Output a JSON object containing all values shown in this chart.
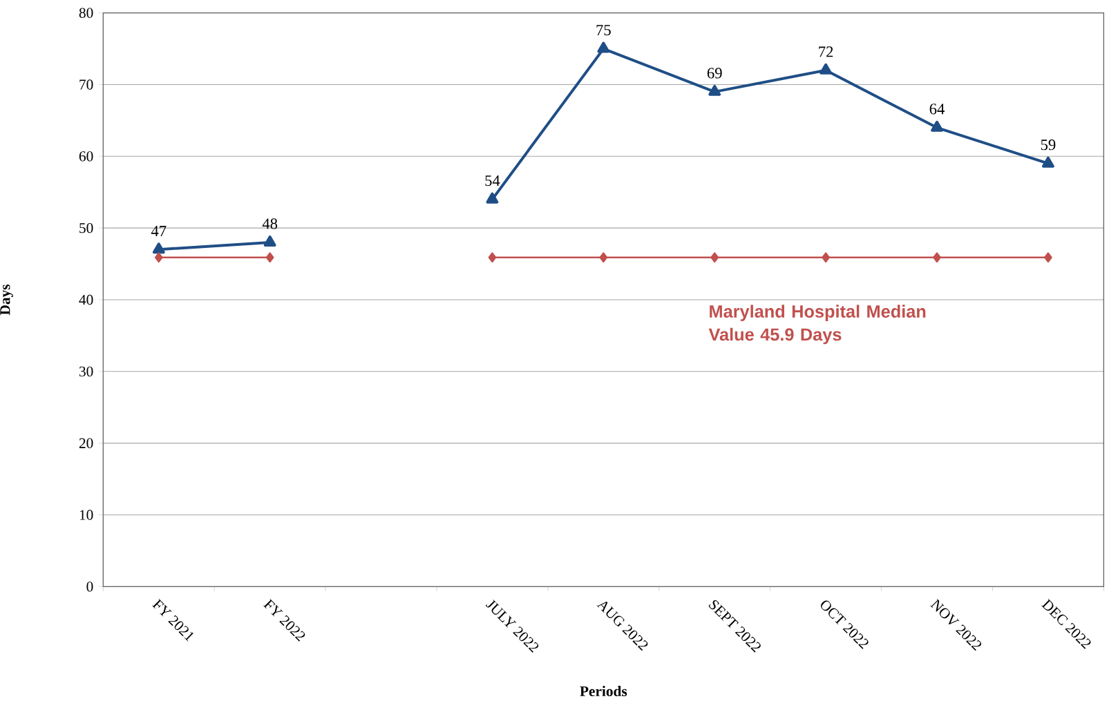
{
  "chart_data": {
    "type": "line",
    "xlabel": "Periods",
    "ylabel": "Days",
    "categories": [
      "FY 2021",
      "FY 2022",
      null,
      "JULY 2022",
      "AUG 2022",
      "SEPT 2022",
      "OCT 2022",
      "NOV 2022",
      "DEC 2022"
    ],
    "series": [
      {
        "color": "#1f4e86",
        "marker": "triangle",
        "values": [
          47,
          48,
          null,
          54,
          75,
          69,
          72,
          64,
          59
        ],
        "data_labels": true
      },
      {
        "color": "#c0504d",
        "marker": "diamond",
        "values": [
          45.9,
          45.9,
          null,
          45.9,
          45.9,
          45.9,
          45.9,
          45.9,
          45.9
        ]
      }
    ],
    "ylim": [
      0,
      80
    ],
    "yticks": [
      0,
      10,
      20,
      30,
      40,
      50,
      60,
      70,
      80
    ],
    "grid": "y",
    "line_style": "solid",
    "annotations": [
      "Maryland Hospital Median Value 45.9 Days"
    ]
  }
}
